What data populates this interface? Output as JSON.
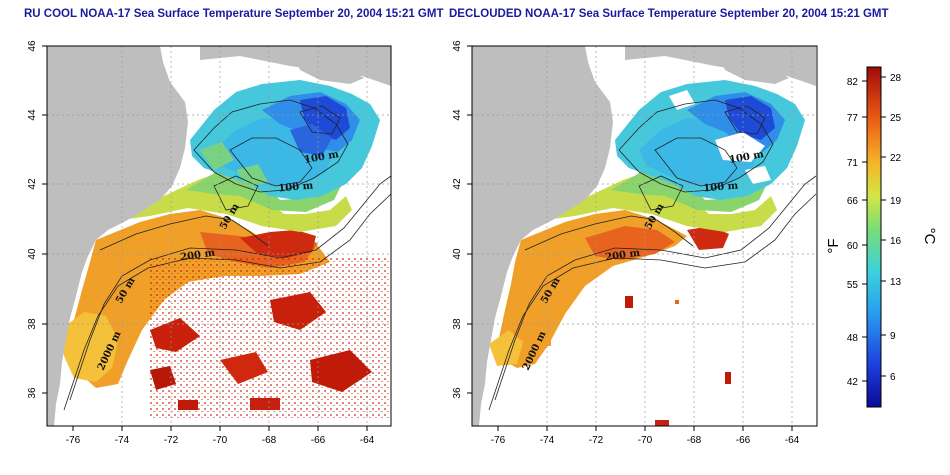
{
  "panels": [
    {
      "id": "left",
      "title": "RU COOL NOAA-17 Sea Surface Temperature September 20, 2004 15:21 GMT"
    },
    {
      "id": "right",
      "title": "DECLOUDED NOAA-17 Sea Surface Temperature September 20, 2004 15:21 GMT"
    }
  ],
  "axes": {
    "lon_ticks": [
      "-76",
      "-74",
      "-72",
      "-70",
      "-68",
      "-66",
      "-64"
    ],
    "lat_ticks": [
      "36",
      "38",
      "40",
      "42",
      "44",
      "46"
    ]
  },
  "contours": {
    "left": [
      "100 m",
      "100 m",
      "50 m",
      "200 m",
      "50 m",
      "2000 m"
    ],
    "right": [
      "100 m",
      "100 m",
      "50 m",
      "200 m",
      "50 m",
      "2000 m"
    ]
  },
  "colorbar": {
    "fahrenheit_label": "°F",
    "celsius_label": "°C",
    "fahrenheit_ticks": [
      "82",
      "77",
      "71",
      "66",
      "60",
      "55",
      "48",
      "42"
    ],
    "celsius_ticks": [
      "28",
      "25",
      "22",
      "19",
      "16",
      "13",
      "9",
      "6"
    ]
  },
  "colors": {
    "land": "#bebebe",
    "title_text": "#1a1aa0",
    "cold": "#1e3cd8",
    "cool": "#3cc8e6",
    "mid": "#6ed28c",
    "warm": "#f0aa28",
    "hot": "#cd1e0a"
  }
}
